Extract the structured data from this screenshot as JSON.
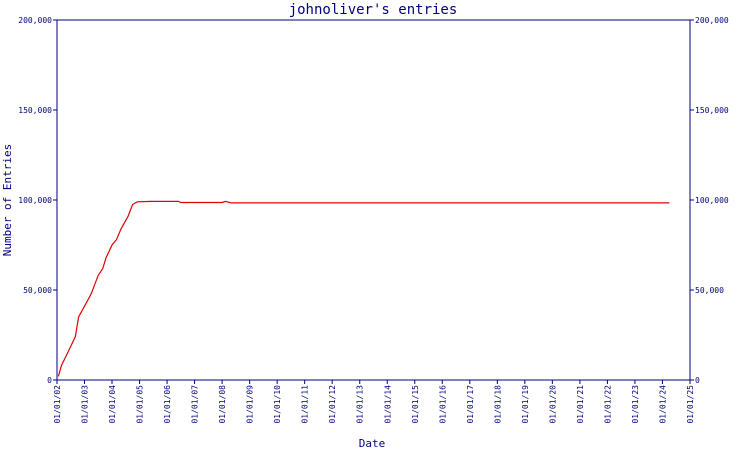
{
  "chart_data": {
    "type": "line",
    "title": "johnoliver's entries",
    "xlabel": "Date",
    "ylabel": "Number of Entries",
    "ylim": [
      0,
      200000
    ],
    "yticks": [
      0,
      50000,
      100000,
      150000,
      200000
    ],
    "ytick_labels": [
      "0",
      "50,000",
      "100,000",
      "150,000",
      "200,000"
    ],
    "right_ytick_labels": [
      "0",
      "50,000",
      "100,000",
      "150,000",
      "200,000"
    ],
    "xlim": [
      "2002-01-01",
      "2025-01-01"
    ],
    "xtick_dates": [
      "2002-01-01",
      "2003-01-01",
      "2004-01-01",
      "2005-01-01",
      "2006-01-01",
      "2007-01-01",
      "2008-01-01",
      "2009-01-01",
      "2010-01-01",
      "2011-01-01",
      "2012-01-01",
      "2013-01-01",
      "2014-01-01",
      "2015-01-01",
      "2016-01-01",
      "2017-01-01",
      "2018-01-01",
      "2019-01-01",
      "2020-01-01",
      "2021-01-01",
      "2022-01-01",
      "2023-01-01",
      "2024-01-01",
      "2025-01-01"
    ],
    "xtick_labels": [
      "01/01/02",
      "01/01/03",
      "01/01/04",
      "01/01/05",
      "01/01/06",
      "01/01/07",
      "01/01/08",
      "01/01/09",
      "01/01/10",
      "01/01/11",
      "01/01/12",
      "01/01/13",
      "01/01/14",
      "01/01/15",
      "01/01/16",
      "01/01/17",
      "01/01/18",
      "01/01/19",
      "01/01/20",
      "01/01/21",
      "01/01/22",
      "01/01/23",
      "01/01/24",
      "01/01/25"
    ],
    "grid": false,
    "series": [
      {
        "color": "#e00000",
        "points": [
          [
            "2002-01-20",
            2000
          ],
          [
            "2002-03-01",
            8000
          ],
          [
            "2002-06-01",
            16000
          ],
          [
            "2002-09-01",
            24000
          ],
          [
            "2002-10-15",
            35000
          ],
          [
            "2003-01-01",
            41000
          ],
          [
            "2003-04-01",
            48000
          ],
          [
            "2003-07-01",
            58000
          ],
          [
            "2003-09-01",
            62000
          ],
          [
            "2003-10-15",
            68000
          ],
          [
            "2004-01-01",
            75000
          ],
          [
            "2004-03-01",
            78000
          ],
          [
            "2004-05-01",
            84000
          ],
          [
            "2004-08-01",
            91000
          ],
          [
            "2004-10-01",
            97500
          ],
          [
            "2004-12-01",
            99000
          ],
          [
            "2005-06-01",
            99200
          ],
          [
            "2006-06-01",
            99200
          ],
          [
            "2006-07-01",
            98600
          ],
          [
            "2008-01-01",
            98600
          ],
          [
            "2008-02-15",
            99200
          ],
          [
            "2008-05-01",
            98400
          ],
          [
            "2012-01-01",
            98400
          ],
          [
            "2018-01-01",
            98400
          ],
          [
            "2024-04-01",
            98400
          ]
        ]
      }
    ]
  }
}
